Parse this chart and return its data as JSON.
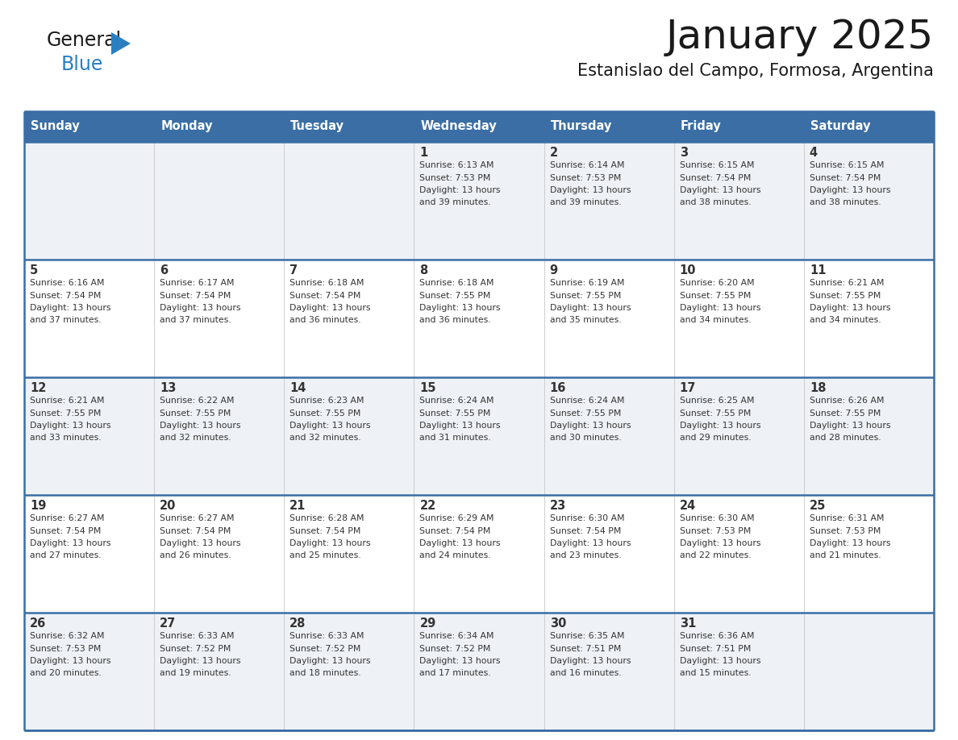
{
  "title": "January 2025",
  "subtitle": "Estanislao del Campo, Formosa, Argentina",
  "days_of_week": [
    "Sunday",
    "Monday",
    "Tuesday",
    "Wednesday",
    "Thursday",
    "Friday",
    "Saturday"
  ],
  "header_bg": "#3a6ea5",
  "header_text": "#ffffff",
  "row_bg_odd": "#eef2f7",
  "row_bg_even": "#ffffff",
  "cell_text": "#333333",
  "border_color": "#3a6ea5",
  "logo_general_color": "#1a1a1a",
  "logo_blue_color": "#2a7fc1",
  "weeks": [
    {
      "days": [
        {
          "day": null,
          "sunrise": null,
          "sunset": null,
          "daylight": null
        },
        {
          "day": null,
          "sunrise": null,
          "sunset": null,
          "daylight": null
        },
        {
          "day": null,
          "sunrise": null,
          "sunset": null,
          "daylight": null
        },
        {
          "day": 1,
          "sunrise": "6:13 AM",
          "sunset": "7:53 PM",
          "daylight": "13 hours and 39 minutes."
        },
        {
          "day": 2,
          "sunrise": "6:14 AM",
          "sunset": "7:53 PM",
          "daylight": "13 hours and 39 minutes."
        },
        {
          "day": 3,
          "sunrise": "6:15 AM",
          "sunset": "7:54 PM",
          "daylight": "13 hours and 38 minutes."
        },
        {
          "day": 4,
          "sunrise": "6:15 AM",
          "sunset": "7:54 PM",
          "daylight": "13 hours and 38 minutes."
        }
      ]
    },
    {
      "days": [
        {
          "day": 5,
          "sunrise": "6:16 AM",
          "sunset": "7:54 PM",
          "daylight": "13 hours and 37 minutes."
        },
        {
          "day": 6,
          "sunrise": "6:17 AM",
          "sunset": "7:54 PM",
          "daylight": "13 hours and 37 minutes."
        },
        {
          "day": 7,
          "sunrise": "6:18 AM",
          "sunset": "7:54 PM",
          "daylight": "13 hours and 36 minutes."
        },
        {
          "day": 8,
          "sunrise": "6:18 AM",
          "sunset": "7:55 PM",
          "daylight": "13 hours and 36 minutes."
        },
        {
          "day": 9,
          "sunrise": "6:19 AM",
          "sunset": "7:55 PM",
          "daylight": "13 hours and 35 minutes."
        },
        {
          "day": 10,
          "sunrise": "6:20 AM",
          "sunset": "7:55 PM",
          "daylight": "13 hours and 34 minutes."
        },
        {
          "day": 11,
          "sunrise": "6:21 AM",
          "sunset": "7:55 PM",
          "daylight": "13 hours and 34 minutes."
        }
      ]
    },
    {
      "days": [
        {
          "day": 12,
          "sunrise": "6:21 AM",
          "sunset": "7:55 PM",
          "daylight": "13 hours and 33 minutes."
        },
        {
          "day": 13,
          "sunrise": "6:22 AM",
          "sunset": "7:55 PM",
          "daylight": "13 hours and 32 minutes."
        },
        {
          "day": 14,
          "sunrise": "6:23 AM",
          "sunset": "7:55 PM",
          "daylight": "13 hours and 32 minutes."
        },
        {
          "day": 15,
          "sunrise": "6:24 AM",
          "sunset": "7:55 PM",
          "daylight": "13 hours and 31 minutes."
        },
        {
          "day": 16,
          "sunrise": "6:24 AM",
          "sunset": "7:55 PM",
          "daylight": "13 hours and 30 minutes."
        },
        {
          "day": 17,
          "sunrise": "6:25 AM",
          "sunset": "7:55 PM",
          "daylight": "13 hours and 29 minutes."
        },
        {
          "day": 18,
          "sunrise": "6:26 AM",
          "sunset": "7:55 PM",
          "daylight": "13 hours and 28 minutes."
        }
      ]
    },
    {
      "days": [
        {
          "day": 19,
          "sunrise": "6:27 AM",
          "sunset": "7:54 PM",
          "daylight": "13 hours and 27 minutes."
        },
        {
          "day": 20,
          "sunrise": "6:27 AM",
          "sunset": "7:54 PM",
          "daylight": "13 hours and 26 minutes."
        },
        {
          "day": 21,
          "sunrise": "6:28 AM",
          "sunset": "7:54 PM",
          "daylight": "13 hours and 25 minutes."
        },
        {
          "day": 22,
          "sunrise": "6:29 AM",
          "sunset": "7:54 PM",
          "daylight": "13 hours and 24 minutes."
        },
        {
          "day": 23,
          "sunrise": "6:30 AM",
          "sunset": "7:54 PM",
          "daylight": "13 hours and 23 minutes."
        },
        {
          "day": 24,
          "sunrise": "6:30 AM",
          "sunset": "7:53 PM",
          "daylight": "13 hours and 22 minutes."
        },
        {
          "day": 25,
          "sunrise": "6:31 AM",
          "sunset": "7:53 PM",
          "daylight": "13 hours and 21 minutes."
        }
      ]
    },
    {
      "days": [
        {
          "day": 26,
          "sunrise": "6:32 AM",
          "sunset": "7:53 PM",
          "daylight": "13 hours and 20 minutes."
        },
        {
          "day": 27,
          "sunrise": "6:33 AM",
          "sunset": "7:52 PM",
          "daylight": "13 hours and 19 minutes."
        },
        {
          "day": 28,
          "sunrise": "6:33 AM",
          "sunset": "7:52 PM",
          "daylight": "13 hours and 18 minutes."
        },
        {
          "day": 29,
          "sunrise": "6:34 AM",
          "sunset": "7:52 PM",
          "daylight": "13 hours and 17 minutes."
        },
        {
          "day": 30,
          "sunrise": "6:35 AM",
          "sunset": "7:51 PM",
          "daylight": "13 hours and 16 minutes."
        },
        {
          "day": 31,
          "sunrise": "6:36 AM",
          "sunset": "7:51 PM",
          "daylight": "13 hours and 15 minutes."
        },
        {
          "day": null,
          "sunrise": null,
          "sunset": null,
          "daylight": null
        }
      ]
    }
  ]
}
